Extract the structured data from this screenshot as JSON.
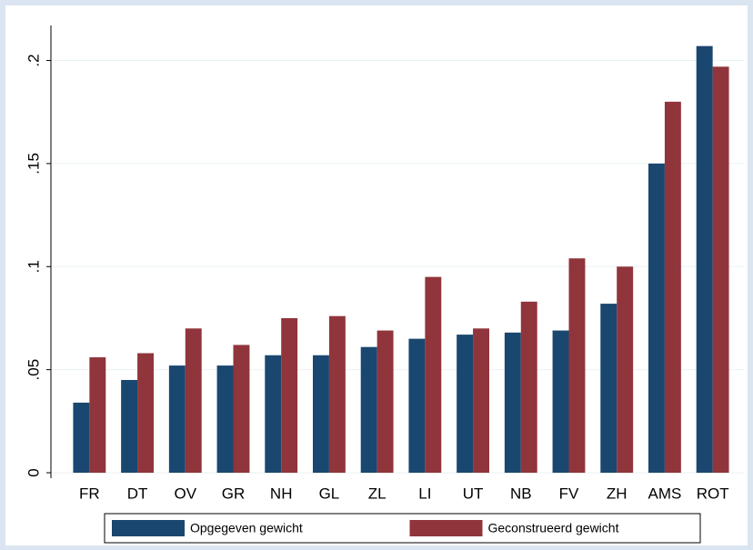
{
  "chart_data": {
    "type": "bar",
    "categories": [
      "FR",
      "DT",
      "OV",
      "GR",
      "NH",
      "GL",
      "ZL",
      "LI",
      "UT",
      "NB",
      "FV",
      "ZH",
      "AMS",
      "ROT"
    ],
    "series": [
      {
        "name": "Opgegeven gewicht",
        "color": "#1a476f",
        "values": [
          0.034,
          0.045,
          0.052,
          0.052,
          0.057,
          0.057,
          0.061,
          0.065,
          0.067,
          0.068,
          0.069,
          0.082,
          0.15,
          0.207
        ]
      },
      {
        "name": "Geconstrueerd gewicht",
        "color": "#90353b",
        "values": [
          0.056,
          0.058,
          0.07,
          0.062,
          0.075,
          0.076,
          0.069,
          0.095,
          0.07,
          0.083,
          0.104,
          0.1,
          0.18,
          0.197
        ]
      }
    ],
    "ylim": [
      0,
      0.217
    ],
    "yticks": [
      0,
      {
        "value": 0.05,
        "label": ".05"
      },
      {
        "value": 0.1,
        "label": ".1"
      },
      {
        "value": 0.15,
        "label": ".15"
      },
      {
        "value": 0.2,
        "label": ".2"
      }
    ],
    "grid": true,
    "legend": "bottom"
  }
}
